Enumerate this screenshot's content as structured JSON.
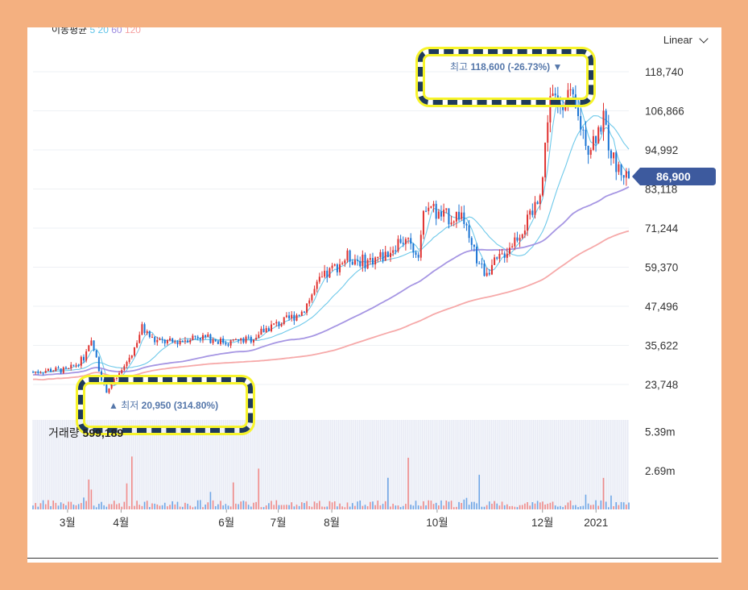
{
  "chart": {
    "ma_label": "이동평균",
    "ma_periods": [
      "5",
      "20",
      "60",
      "120"
    ],
    "scale_mode": "Linear",
    "current_price": "86,900",
    "high": {
      "label": "최고",
      "text": "118,600 (-26.73%)"
    },
    "low": {
      "label": "최저",
      "text": "20,950 (314.80%)"
    },
    "volume": {
      "label": "거래량",
      "value": "599,189"
    }
  },
  "chart_data": {
    "type": "candlestick",
    "y_ticks": [
      "118,740",
      "106,866",
      "94,992",
      "83,118",
      "71,244",
      "59,370",
      "47,496",
      "35,622",
      "23,748"
    ],
    "y_tick_values": [
      118740,
      106866,
      94992,
      83118,
      71244,
      59370,
      47496,
      35622,
      23748
    ],
    "volume_ticks": [
      "5.39m",
      "2.69m"
    ],
    "volume_tick_values": [
      5.39,
      2.69
    ],
    "x_ticks": [
      "3월",
      "4월",
      "6월",
      "7월",
      "8월",
      "10월",
      "12월",
      "2021"
    ],
    "x_tick_dates": [
      "2020-03-01",
      "2020-04-01",
      "2020-06-01",
      "2020-07-01",
      "2020-08-01",
      "2020-10-01",
      "2020-12-01",
      "2021-01-01"
    ],
    "date_range": [
      "2020-02-10",
      "2021-01-20"
    ],
    "current_price": 86900,
    "high": 118600,
    "low": 20950,
    "closes": [
      [
        "2020-02-10",
        27500
      ],
      [
        "2020-02-20",
        28200
      ],
      [
        "2020-03-01",
        28000
      ],
      [
        "2020-03-10",
        31500
      ],
      [
        "2020-03-15",
        36500
      ],
      [
        "2020-03-20",
        27000
      ],
      [
        "2020-03-23",
        21500
      ],
      [
        "2020-04-01",
        27500
      ],
      [
        "2020-04-08",
        34000
      ],
      [
        "2020-04-13",
        41000
      ],
      [
        "2020-04-20",
        37000
      ],
      [
        "2020-05-01",
        36500
      ],
      [
        "2020-05-15",
        38500
      ],
      [
        "2020-06-01",
        36500
      ],
      [
        "2020-06-15",
        37500
      ],
      [
        "2020-06-25",
        41000
      ],
      [
        "2020-07-05",
        43000
      ],
      [
        "2020-07-15",
        46000
      ],
      [
        "2020-07-25",
        55000
      ],
      [
        "2020-08-01",
        58500
      ],
      [
        "2020-08-10",
        62500
      ],
      [
        "2020-08-20",
        61000
      ],
      [
        "2020-09-01",
        63000
      ],
      [
        "2020-09-10",
        68000
      ],
      [
        "2020-09-20",
        64000
      ],
      [
        "2020-09-25",
        80500
      ],
      [
        "2020-10-01",
        75000
      ],
      [
        "2020-10-10",
        74500
      ],
      [
        "2020-10-15",
        76000
      ],
      [
        "2020-10-20",
        66000
      ],
      [
        "2020-10-28",
        58000
      ],
      [
        "2020-11-05",
        61000
      ],
      [
        "2020-11-15",
        68000
      ],
      [
        "2020-11-25",
        75000
      ],
      [
        "2020-12-01",
        86000
      ],
      [
        "2020-12-05",
        112000
      ],
      [
        "2020-12-10",
        108000
      ],
      [
        "2020-12-15",
        113000
      ],
      [
        "2020-12-22",
        104000
      ],
      [
        "2020-12-28",
        96000
      ],
      [
        "2021-01-05",
        104000
      ],
      [
        "2021-01-12",
        90000
      ],
      [
        "2021-01-20",
        86900
      ]
    ],
    "moving_averages": [
      "5",
      "20",
      "60",
      "120"
    ]
  }
}
